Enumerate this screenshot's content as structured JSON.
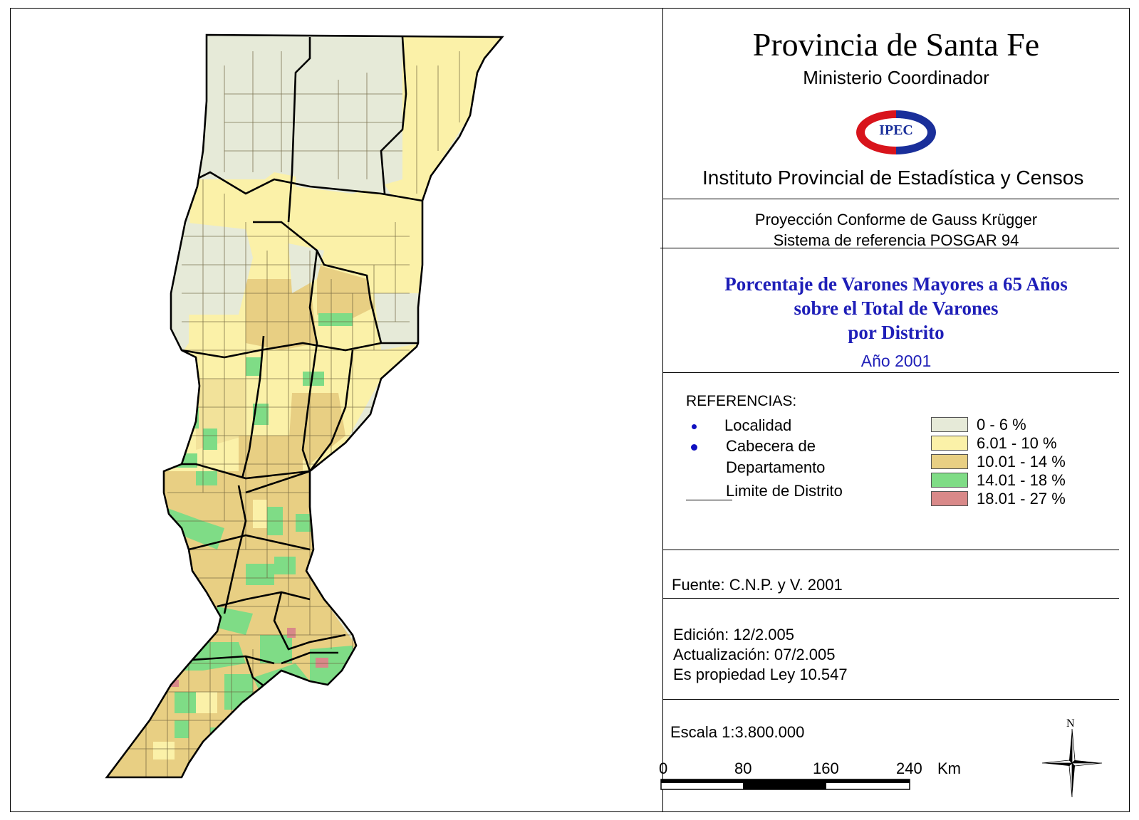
{
  "header": {
    "title": "Provincia de Santa Fe",
    "subtitle": "Ministerio Coordinador",
    "logo_text": "IPEC",
    "institute": "Instituto Provincial de Estadística y Censos"
  },
  "projection": {
    "line1": "Proyección Conforme de Gauss Krügger",
    "line2": "Sistema de referencia POSGAR 94"
  },
  "map_title": {
    "line1": "Porcentaje de Varones Mayores a 65 Años",
    "line2": "sobre el Total de Varones",
    "line3": "por Distrito",
    "year": "Año 2001"
  },
  "legend": {
    "title": "REFERENCIAS:",
    "localidad": "Localidad",
    "cabecera_1": "Cabecera de",
    "cabecera_2": "Departamento",
    "limite": "Limite de Distrito",
    "classes": [
      {
        "label": "0 - 6 %",
        "color": "#e6ead8"
      },
      {
        "label": "6.01 - 10 %",
        "color": "#fbf1a8"
      },
      {
        "label": "10.01 - 14 %",
        "color": "#e8cf83"
      },
      {
        "label": "14.01 - 18 %",
        "color": "#7fdc86"
      },
      {
        "label": "18.01 - 27 %",
        "color": "#d98989"
      }
    ]
  },
  "source": {
    "text": "Fuente:  C.N.P. y V. 2001"
  },
  "edition": {
    "edicion": "Edición:  12/2.005",
    "actualizacion": "Actualización:  07/2.005",
    "propiedad": "Es propiedad Ley 10.547"
  },
  "scale": {
    "text": "Escala 1:3.800.000",
    "ticks": [
      "0",
      "80",
      "160",
      "240"
    ],
    "unit": "Km",
    "north": "N"
  },
  "colors": {
    "title_blue": "#1f1fb8",
    "logo_red": "#d8141c",
    "logo_blue": "#1a2f9a"
  }
}
